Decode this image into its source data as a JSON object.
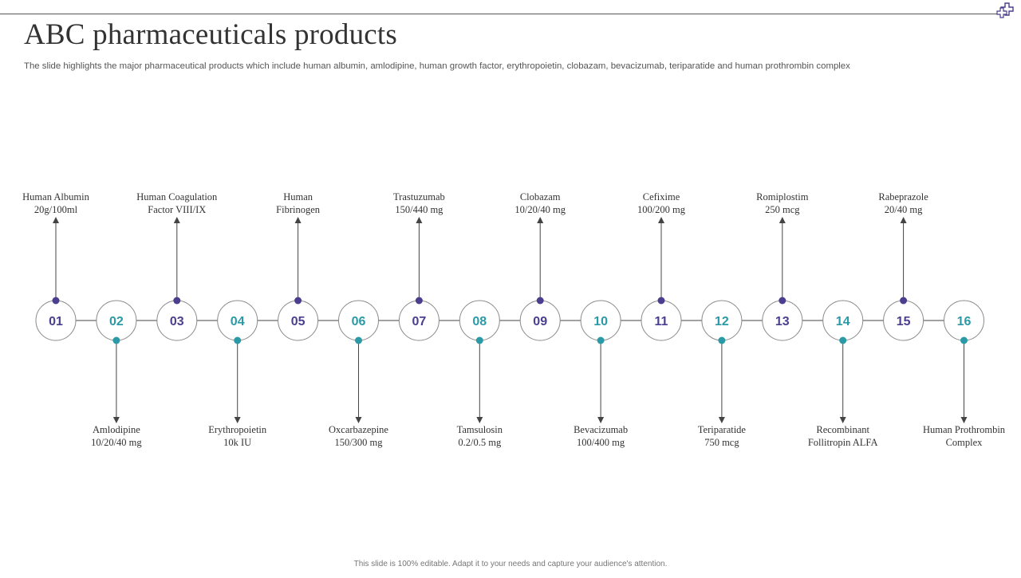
{
  "title": "ABC pharmaceuticals products",
  "subtitle": "The slide highlights the major pharmaceutical products which include human albumin, amlodipine, human growth factor, erythropoietin, clobazam, bevacizumab, teriparatide and human prothrombin complex",
  "footer": "This slide is 100% editable. Adapt it to your needs and capture your audience's attention.",
  "colors": {
    "purple": "#4a3f8f",
    "teal": "#2a9aa6",
    "line": "#444444",
    "circle_border": "#8a8a8a"
  },
  "products": [
    {
      "number": "01",
      "name": "Human Albumin",
      "dose": "20g/100ml",
      "position": "top",
      "accent": "purple"
    },
    {
      "number": "02",
      "name": "Amlodipine",
      "dose": "10/20/40  mg",
      "position": "bottom",
      "accent": "teal"
    },
    {
      "number": "03",
      "name": "Human Coagulation",
      "dose": "Factor VIII/IX",
      "position": "top",
      "accent": "purple"
    },
    {
      "number": "04",
      "name": "Erythropoietin",
      "dose": "10k IU",
      "position": "bottom",
      "accent": "teal"
    },
    {
      "number": "05",
      "name": "Human",
      "dose": "Fibrinogen",
      "position": "top",
      "accent": "purple"
    },
    {
      "number": "06",
      "name": "Oxcarbazepine",
      "dose": "150/300  mg",
      "position": "bottom",
      "accent": "teal"
    },
    {
      "number": "07",
      "name": "Trastuzumab",
      "dose": "150/440  mg",
      "position": "top",
      "accent": "purple"
    },
    {
      "number": "08",
      "name": "Tamsulosin",
      "dose": "0.2/0.5  mg",
      "position": "bottom",
      "accent": "teal"
    },
    {
      "number": "09",
      "name": "Clobazam",
      "dose": "10/20/40  mg",
      "position": "top",
      "accent": "purple"
    },
    {
      "number": "10",
      "name": "Bevacizumab",
      "dose": "100/400  mg",
      "position": "bottom",
      "accent": "teal"
    },
    {
      "number": "11",
      "name": "Cefixime",
      "dose": "100/200  mg",
      "position": "top",
      "accent": "purple"
    },
    {
      "number": "12",
      "name": "Teriparatide",
      "dose": "750 mcg",
      "position": "bottom",
      "accent": "teal"
    },
    {
      "number": "13",
      "name": "Romiplostim",
      "dose": "250 mcg",
      "position": "top",
      "accent": "purple"
    },
    {
      "number": "14",
      "name": "Recombinant",
      "dose": "Follitropin  ALFA",
      "position": "bottom",
      "accent": "teal"
    },
    {
      "number": "15",
      "name": "Rabeprazole",
      "dose": "20/40  mg",
      "position": "top",
      "accent": "purple"
    },
    {
      "number": "16",
      "name": "Human  Prothrombin",
      "dose": "Complex",
      "position": "bottom",
      "accent": "teal"
    }
  ]
}
